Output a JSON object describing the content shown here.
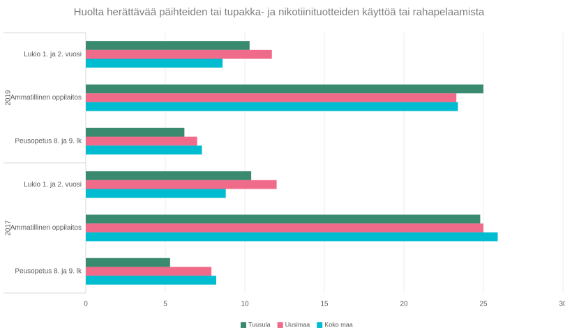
{
  "chart_data": {
    "type": "hbar",
    "title": "Huolta herättävää päihteiden tai tupakka- ja nikotiinituotteiden käyttöä tai rahapelaamista",
    "groups": [
      {
        "name": "2019",
        "categories": [
          "Lukio 1. ja 2. vuosi",
          "Ammatillinen oppilaitos",
          "Peusopetus 8. ja 9. lk"
        ]
      },
      {
        "name": "2017",
        "categories": [
          "Lukio 1. ja 2. vuosi",
          "Ammatillinen oppilaitos",
          "Peusopetus 8. ja 9. lk"
        ]
      }
    ],
    "series": [
      {
        "name": "Tuusula",
        "color": "#3a8a70",
        "values": [
          10.3,
          25.0,
          6.2,
          10.4,
          24.8,
          5.3
        ]
      },
      {
        "name": "Uusimaa",
        "color": "#f06a8a",
        "values": [
          11.7,
          23.3,
          7.0,
          12.0,
          25.0,
          7.9
        ]
      },
      {
        "name": "Koko maa",
        "color": "#00bcd0",
        "values": [
          8.6,
          23.4,
          7.3,
          8.8,
          25.9,
          8.2
        ]
      }
    ],
    "xlim": [
      0,
      30
    ],
    "xticks": [
      0,
      5,
      10,
      15,
      20,
      25,
      30
    ],
    "grid": true,
    "legend": "bottom"
  }
}
